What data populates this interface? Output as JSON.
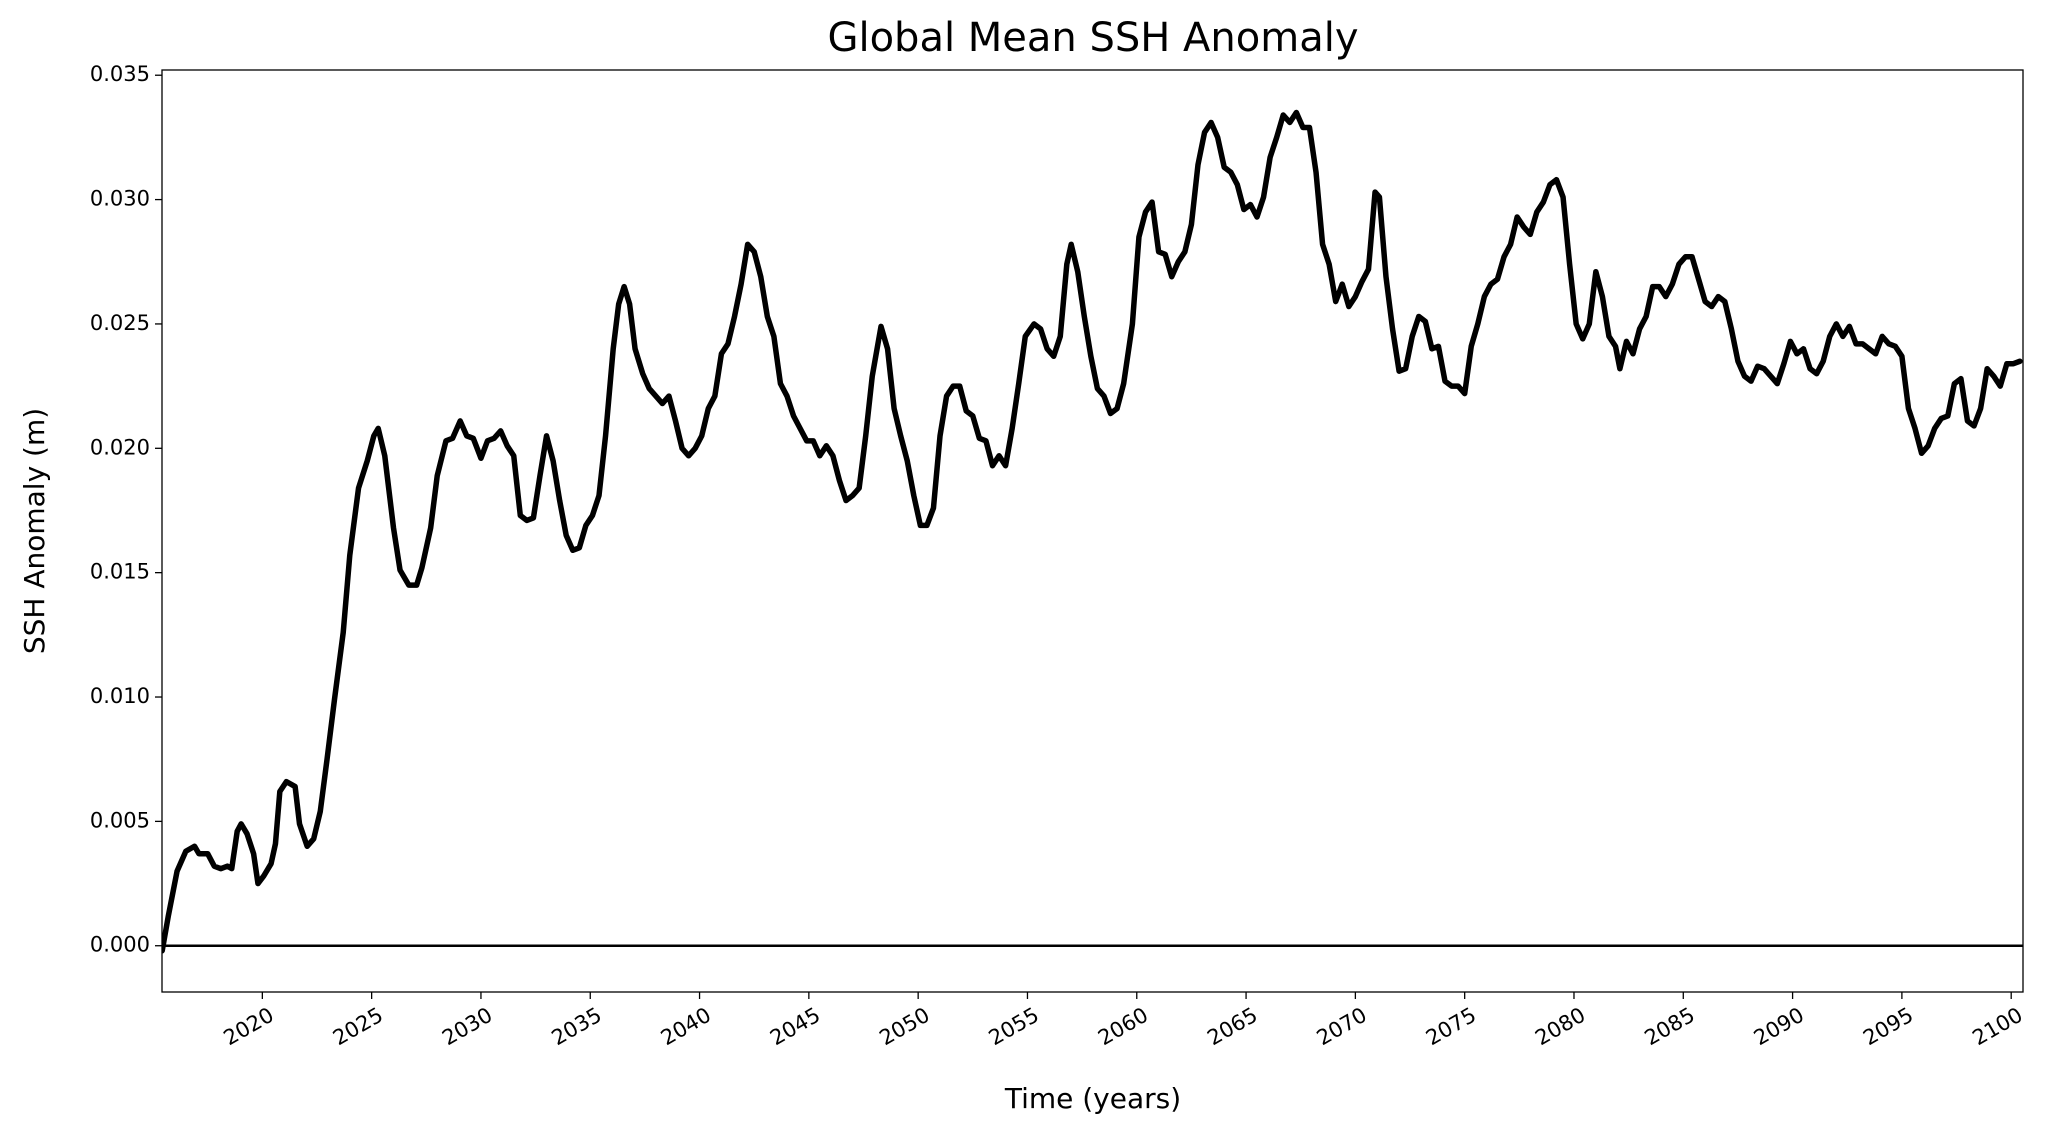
{
  "chart_data": {
    "type": "line",
    "title": "Global Mean SSH Anomaly",
    "xlabel": "Time (years)",
    "ylabel": "SSH Anomaly (m)",
    "xlim": [
      2015.41,
      2100.54
    ],
    "ylim": [
      -0.00186,
      0.03521
    ],
    "xticks": [
      2020,
      2025,
      2030,
      2035,
      2040,
      2045,
      2050,
      2055,
      2060,
      2065,
      2070,
      2075,
      2080,
      2085,
      2090,
      2095,
      2100
    ],
    "yticks": [
      {
        "value": 0,
        "label": "0.000"
      },
      {
        "value": 0.005,
        "label": "0.005"
      },
      {
        "value": 0.01,
        "label": "0.010"
      },
      {
        "value": 0.015,
        "label": "0.015"
      },
      {
        "value": 0.02,
        "label": "0.020"
      },
      {
        "value": 0.025,
        "label": "0.025"
      },
      {
        "value": 0.03,
        "label": "0.030"
      },
      {
        "value": 0.035,
        "label": "0.035"
      }
    ],
    "hline": 0,
    "grid": false,
    "series": [
      {
        "name": "Global Mean SSH Anomaly",
        "color": "#000000",
        "x": [
          2015.42,
          2015.7,
          2016.1,
          2016.5,
          2016.9,
          2017.1,
          2017.5,
          2017.8,
          2018.1,
          2018.4,
          2018.6,
          2018.85,
          2019.03,
          2019.3,
          2019.6,
          2019.8,
          2020.06,
          2020.4,
          2020.6,
          2020.8,
          2021.1,
          2021.5,
          2021.7,
          2022.05,
          2022.35,
          2022.65,
          2022.96,
          2023.3,
          2023.7,
          2024.0,
          2024.4,
          2024.8,
          2025.1,
          2025.3,
          2025.6,
          2026.0,
          2026.3,
          2026.7,
          2027.06,
          2027.3,
          2027.7,
          2028.0,
          2028.4,
          2028.7,
          2029.05,
          2029.35,
          2029.65,
          2030.0,
          2030.3,
          2030.6,
          2030.9,
          2031.2,
          2031.5,
          2031.8,
          2032.1,
          2032.4,
          2032.7,
          2033.0,
          2033.3,
          2033.6,
          2033.9,
          2034.2,
          2034.5,
          2034.8,
          2035.1,
          2035.4,
          2035.7,
          2036.05,
          2036.3,
          2036.55,
          2036.8,
          2037.05,
          2037.4,
          2037.7,
          2038.0,
          2038.3,
          2038.6,
          2038.9,
          2039.2,
          2039.5,
          2039.8,
          2040.1,
          2040.4,
          2040.7,
          2041.0,
          2041.3,
          2041.6,
          2041.9,
          2042.2,
          2042.5,
          2042.8,
          2043.1,
          2043.4,
          2043.7,
          2044.0,
          2044.3,
          2044.6,
          2044.9,
          2045.2,
          2045.5,
          2045.8,
          2046.1,
          2046.4,
          2046.7,
          2047.0,
          2047.3,
          2047.6,
          2047.9,
          2048.3,
          2048.6,
          2048.9,
          2049.2,
          2049.5,
          2049.8,
          2050.1,
          2050.4,
          2050.7,
          2051.0,
          2051.3,
          2051.6,
          2051.9,
          2052.2,
          2052.5,
          2052.8,
          2053.1,
          2053.4,
          2053.7,
          2054.0,
          2054.3,
          2054.6,
          2054.9,
          2055.3,
          2055.6,
          2055.9,
          2056.2,
          2056.5,
          2056.8,
          2057.0,
          2057.3,
          2057.6,
          2057.9,
          2058.2,
          2058.5,
          2058.8,
          2059.1,
          2059.4,
          2059.8,
          2060.1,
          2060.4,
          2060.7,
          2061.0,
          2061.3,
          2061.6,
          2061.9,
          2062.2,
          2062.5,
          2062.8,
          2063.1,
          2063.4,
          2063.7,
          2064.0,
          2064.3,
          2064.6,
          2064.9,
          2065.2,
          2065.5,
          2065.8,
          2066.1,
          2066.4,
          2066.7,
          2067.0,
          2067.3,
          2067.6,
          2067.9,
          2068.2,
          2068.5,
          2068.8,
          2069.1,
          2069.4,
          2069.7,
          2070.0,
          2070.3,
          2070.6,
          2070.9,
          2071.1,
          2071.4,
          2071.7,
          2072.0,
          2072.3,
          2072.6,
          2072.9,
          2073.2,
          2073.5,
          2073.8,
          2074.1,
          2074.4,
          2074.7,
          2075.0,
          2075.3,
          2075.6,
          2075.9,
          2076.2,
          2076.5,
          2076.8,
          2077.1,
          2077.4,
          2077.7,
          2078.0,
          2078.3,
          2078.6,
          2078.9,
          2079.2,
          2079.5,
          2079.8,
          2080.1,
          2080.4,
          2080.7,
          2081.0,
          2081.3,
          2081.6,
          2081.9,
          2082.1,
          2082.4,
          2082.7,
          2083.0,
          2083.3,
          2083.6,
          2083.9,
          2084.2,
          2084.5,
          2084.8,
          2085.1,
          2085.4,
          2085.7,
          2086.0,
          2086.3,
          2086.6,
          2086.9,
          2087.2,
          2087.5,
          2087.8,
          2088.1,
          2088.4,
          2088.7,
          2089.0,
          2089.3,
          2089.6,
          2089.9,
          2090.2,
          2090.5,
          2090.8,
          2091.1,
          2091.4,
          2091.7,
          2092.0,
          2092.3,
          2092.6,
          2092.9,
          2093.2,
          2093.5,
          2093.8,
          2094.1,
          2094.4,
          2094.7,
          2095.0,
          2095.3,
          2095.6,
          2095.9,
          2096.2,
          2096.5,
          2096.8,
          2097.1,
          2097.4,
          2097.7,
          2098.0,
          2098.3,
          2098.6,
          2098.9,
          2099.2,
          2099.5,
          2099.8,
          2100.1,
          2100.4
        ],
        "values": [
          -0.0002,
          0.0012,
          0.003,
          0.0038,
          0.004,
          0.0037,
          0.0037,
          0.0032,
          0.0031,
          0.0032,
          0.0031,
          0.0046,
          0.0049,
          0.0045,
          0.0037,
          0.0025,
          0.0028,
          0.0033,
          0.0041,
          0.0062,
          0.0066,
          0.0064,
          0.0049,
          0.004,
          0.0043,
          0.0054,
          0.0075,
          0.0099,
          0.0126,
          0.0157,
          0.0184,
          0.0195,
          0.0205,
          0.0208,
          0.0197,
          0.0168,
          0.0151,
          0.0145,
          0.0145,
          0.0152,
          0.0168,
          0.0189,
          0.0203,
          0.0204,
          0.0211,
          0.0205,
          0.0204,
          0.0196,
          0.0203,
          0.0204,
          0.0207,
          0.0201,
          0.0197,
          0.0173,
          0.0171,
          0.0172,
          0.0189,
          0.0205,
          0.0195,
          0.0179,
          0.0165,
          0.0159,
          0.016,
          0.0169,
          0.0173,
          0.0181,
          0.0205,
          0.024,
          0.0258,
          0.0265,
          0.0258,
          0.024,
          0.023,
          0.0224,
          0.0221,
          0.0218,
          0.0221,
          0.0211,
          0.02,
          0.0197,
          0.02,
          0.0205,
          0.0216,
          0.0221,
          0.0238,
          0.0242,
          0.0253,
          0.0266,
          0.0282,
          0.0279,
          0.0269,
          0.0253,
          0.0245,
          0.0226,
          0.0221,
          0.0213,
          0.0208,
          0.0203,
          0.0203,
          0.0197,
          0.0201,
          0.0197,
          0.0187,
          0.0179,
          0.0181,
          0.0184,
          0.0205,
          0.0229,
          0.0249,
          0.024,
          0.0216,
          0.0205,
          0.0195,
          0.0181,
          0.0169,
          0.0169,
          0.0176,
          0.0205,
          0.0221,
          0.0225,
          0.0225,
          0.0215,
          0.0213,
          0.0204,
          0.0203,
          0.0193,
          0.0197,
          0.0193,
          0.0208,
          0.0226,
          0.0245,
          0.025,
          0.0248,
          0.024,
          0.0237,
          0.0245,
          0.0274,
          0.0282,
          0.0271,
          0.0253,
          0.0237,
          0.0224,
          0.0221,
          0.0214,
          0.0216,
          0.0226,
          0.025,
          0.0285,
          0.0295,
          0.0299,
          0.0279,
          0.0278,
          0.0269,
          0.0275,
          0.0279,
          0.029,
          0.0314,
          0.0327,
          0.0331,
          0.0325,
          0.0313,
          0.0311,
          0.0306,
          0.0296,
          0.0298,
          0.0293,
          0.0301,
          0.0317,
          0.0325,
          0.0334,
          0.0331,
          0.0335,
          0.0329,
          0.0329,
          0.0311,
          0.0282,
          0.0274,
          0.0259,
          0.0266,
          0.0257,
          0.0261,
          0.0267,
          0.0272,
          0.0303,
          0.0301,
          0.0269,
          0.0248,
          0.0231,
          0.0232,
          0.0245,
          0.0253,
          0.0251,
          0.024,
          0.0241,
          0.0227,
          0.0225,
          0.0225,
          0.0222,
          0.0241,
          0.025,
          0.0261,
          0.0266,
          0.0268,
          0.0277,
          0.0282,
          0.0293,
          0.0289,
          0.0286,
          0.0295,
          0.0299,
          0.0306,
          0.0308,
          0.0301,
          0.0274,
          0.025,
          0.0244,
          0.025,
          0.0271,
          0.0261,
          0.0245,
          0.0241,
          0.0232,
          0.0243,
          0.0238,
          0.0248,
          0.0253,
          0.0265,
          0.0265,
          0.0261,
          0.0266,
          0.0274,
          0.0277,
          0.0277,
          0.0268,
          0.0259,
          0.0257,
          0.0261,
          0.0259,
          0.0248,
          0.0235,
          0.0229,
          0.0227,
          0.0233,
          0.0232,
          0.0229,
          0.0226,
          0.0234,
          0.0243,
          0.0238,
          0.024,
          0.0232,
          0.023,
          0.0235,
          0.0245,
          0.025,
          0.0245,
          0.0249,
          0.0242,
          0.0242,
          0.024,
          0.0238,
          0.0245,
          0.0242,
          0.0241,
          0.0237,
          0.0216,
          0.0208,
          0.0198,
          0.0201,
          0.0208,
          0.0212,
          0.0213,
          0.0226,
          0.0228,
          0.0211,
          0.0209,
          0.0216,
          0.0232,
          0.0229,
          0.0225,
          0.0234,
          0.0234,
          0.0235
        ]
      }
    ]
  }
}
